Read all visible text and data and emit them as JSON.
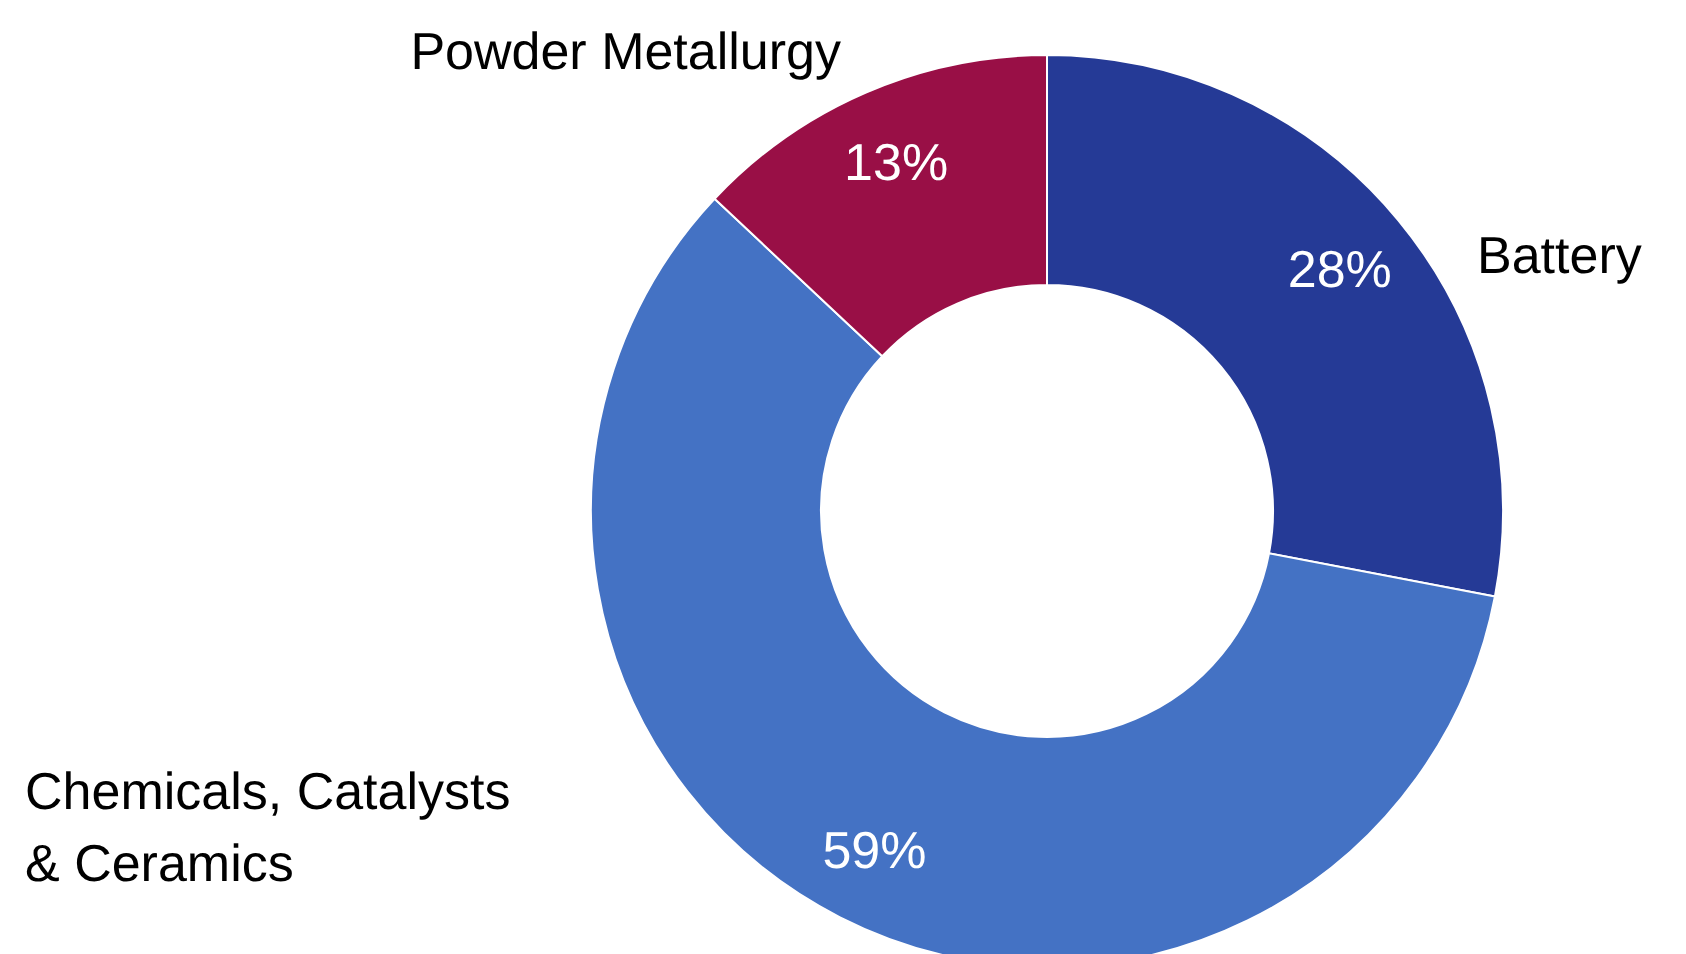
{
  "chart_data": {
    "type": "donut",
    "categories": [
      "Battery",
      "Chemicals, Catalysts\n& Ceramics",
      "Powder Metallurgy"
    ],
    "values": [
      28,
      59,
      13
    ],
    "colors": [
      "#253a96",
      "#4472c4",
      "#990f46"
    ],
    "value_labels": [
      "28%",
      "59%",
      "13%"
    ]
  }
}
